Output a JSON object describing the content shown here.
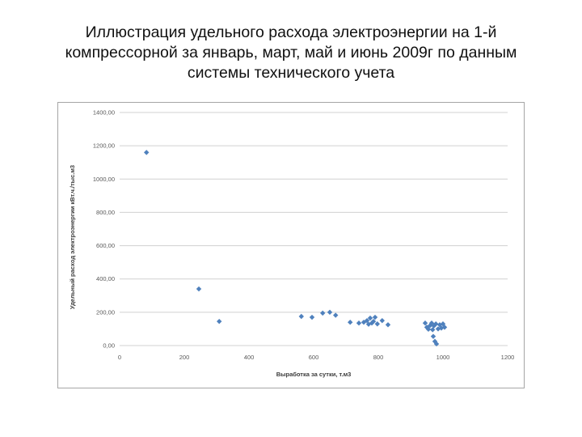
{
  "title_lines": [
    "Иллюстрация удельного расхода электроэнергии на 1-й",
    "компрессорной за январь, март, май и июнь 2009г по данным",
    "системы технического учета"
  ],
  "chart_data": {
    "type": "scatter",
    "title": "Иллюстрация удельного расхода электроэнергии на 1-й компрессорной за январь, март, май и июнь 2009г по данным системы технического учета",
    "xlabel": "Выработка за сутки, т.м3",
    "ylabel": "Удельный расход электроэнергии кВт.ч./тыс.м3",
    "xlim": [
      0,
      1200
    ],
    "ylim": [
      0,
      1400
    ],
    "x_ticks": [
      0,
      200,
      400,
      600,
      800,
      1000,
      1200
    ],
    "x_tick_labels": [
      "0",
      "200",
      "400",
      "600",
      "800",
      "1000",
      "1200"
    ],
    "y_ticks": [
      0,
      200,
      400,
      600,
      800,
      1000,
      1200,
      1400
    ],
    "y_tick_labels": [
      "0,00",
      "200,00",
      "400,00",
      "600,00",
      "800,00",
      "1000,00",
      "1200,00",
      "1400,00"
    ],
    "grid": "horizontal",
    "legend": "none",
    "marker": "diamond",
    "marker_color": "#4f81bd",
    "gridline_color": "#d0d0d0",
    "points": [
      {
        "x": 83,
        "y": 1160
      },
      {
        "x": 245,
        "y": 340
      },
      {
        "x": 308,
        "y": 145
      },
      {
        "x": 562,
        "y": 175
      },
      {
        "x": 595,
        "y": 170
      },
      {
        "x": 628,
        "y": 195
      },
      {
        "x": 650,
        "y": 200
      },
      {
        "x": 668,
        "y": 182
      },
      {
        "x": 713,
        "y": 140
      },
      {
        "x": 740,
        "y": 135
      },
      {
        "x": 755,
        "y": 140
      },
      {
        "x": 765,
        "y": 150
      },
      {
        "x": 770,
        "y": 128
      },
      {
        "x": 775,
        "y": 165
      },
      {
        "x": 780,
        "y": 135
      },
      {
        "x": 785,
        "y": 145
      },
      {
        "x": 790,
        "y": 170
      },
      {
        "x": 797,
        "y": 130
      },
      {
        "x": 812,
        "y": 150
      },
      {
        "x": 830,
        "y": 125
      },
      {
        "x": 945,
        "y": 135
      },
      {
        "x": 950,
        "y": 110
      },
      {
        "x": 955,
        "y": 98
      },
      {
        "x": 960,
        "y": 120
      },
      {
        "x": 965,
        "y": 135
      },
      {
        "x": 968,
        "y": 95
      },
      {
        "x": 970,
        "y": 55
      },
      {
        "x": 972,
        "y": 118
      },
      {
        "x": 975,
        "y": 25
      },
      {
        "x": 978,
        "y": 130
      },
      {
        "x": 980,
        "y": 10
      },
      {
        "x": 985,
        "y": 100
      },
      {
        "x": 990,
        "y": 125
      },
      {
        "x": 995,
        "y": 105
      },
      {
        "x": 1000,
        "y": 130
      },
      {
        "x": 1005,
        "y": 110
      }
    ]
  }
}
